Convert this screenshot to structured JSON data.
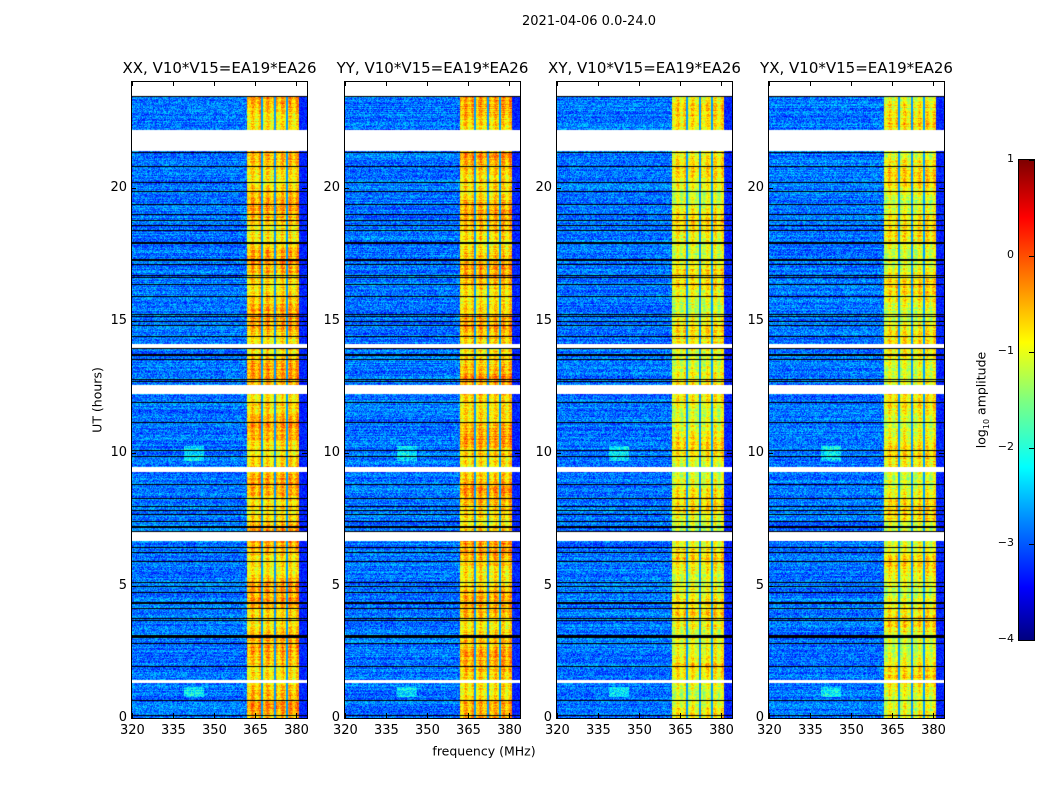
{
  "figure": {
    "suptitle": "2021-04-06 0.0-24.0",
    "ylabel": "UT (hours)",
    "xlabel": "frequency (MHz)"
  },
  "chart_data": {
    "type": "heatmap",
    "title": "2021-04-06 0.0-24.0",
    "xlabel": "frequency (MHz)",
    "ylabel": "UT (hours)",
    "xlim": [
      320,
      384
    ],
    "ylim": [
      0,
      24
    ],
    "x_ticks": [
      "320",
      "335",
      "350",
      "365",
      "380"
    ],
    "x_tick_values": [
      320,
      335,
      350,
      365,
      380
    ],
    "y_ticks": [
      "0",
      "5",
      "10",
      "15",
      "20"
    ],
    "y_tick_values": [
      0,
      5,
      10,
      15,
      20
    ],
    "panels": [
      {
        "title": "XX, V10*V15=EA19*EA26",
        "band_level": -0.6
      },
      {
        "title": "YY, V10*V15=EA19*EA26",
        "band_level": -0.6
      },
      {
        "title": "XY, V10*V15=EA19*EA26",
        "band_level": -0.9
      },
      {
        "title": "YX, V10*V15=EA19*EA26",
        "band_level": -0.9
      }
    ],
    "background_level": -2.8,
    "high_band_mhz": [
      362,
      381
    ],
    "band_dividers_mhz": [
      367.5,
      372,
      376.5
    ],
    "data_gaps_hours": [
      [
        23.5,
        24
      ],
      [
        21.4,
        22.2
      ],
      [
        14.0,
        14.15
      ],
      [
        12.25,
        12.6
      ],
      [
        9.3,
        9.5
      ],
      [
        6.7,
        7.05
      ],
      [
        1.35,
        1.45
      ]
    ],
    "colorbar": {
      "colormap": "jet",
      "range": [
        -4,
        1
      ],
      "ticks": [
        "1",
        "0",
        "−1",
        "−2",
        "−3",
        "−4"
      ],
      "tick_values": [
        1,
        0,
        -1,
        -2,
        -3,
        -4
      ],
      "label_main": "log",
      "label_sub": "10",
      "label_rest": " amplitude"
    }
  }
}
